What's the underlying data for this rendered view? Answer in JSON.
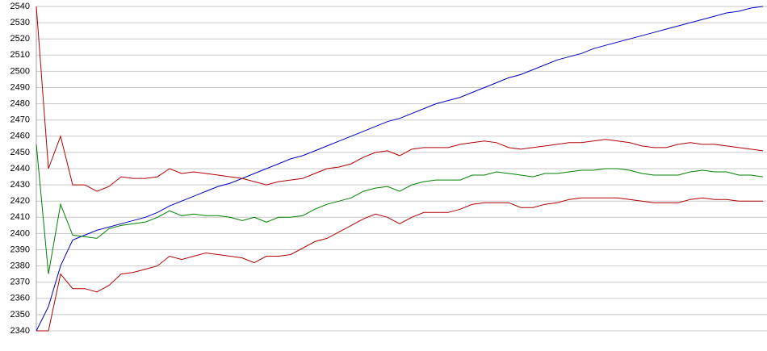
{
  "chart_data": {
    "type": "line",
    "ylim": [
      2340,
      2540
    ],
    "yticks": [
      2340,
      2350,
      2360,
      2370,
      2380,
      2390,
      2400,
      2410,
      2420,
      2430,
      2440,
      2450,
      2460,
      2470,
      2480,
      2490,
      2500,
      2510,
      2520,
      2530,
      2540
    ],
    "grid": true,
    "series": [
      {
        "color": "#0000c0",
        "values": [
          2340,
          2355,
          2380,
          2396,
          2399,
          2402,
          2404,
          2406,
          2408,
          2410,
          2413,
          2417,
          2420,
          2423,
          2426,
          2429,
          2431,
          2434,
          2437,
          2440,
          2443,
          2446,
          2448,
          2451,
          2454,
          2457,
          2460,
          2463,
          2466,
          2469,
          2471,
          2474,
          2477,
          2480,
          2482,
          2484,
          2487,
          2490,
          2493,
          2496,
          2498,
          2501,
          2504,
          2507,
          2509,
          2511,
          2514,
          2516,
          2518,
          2520,
          2522,
          2524,
          2526,
          2528,
          2530,
          2532,
          2534,
          2536,
          2537,
          2539,
          2540
        ]
      },
      {
        "color": "#008000",
        "values": [
          2455,
          2375,
          2418,
          2399,
          2398,
          2397,
          2403,
          2405,
          2406,
          2407,
          2410,
          2414,
          2411,
          2412,
          2411,
          2411,
          2410,
          2408,
          2410,
          2407,
          2410,
          2410,
          2411,
          2415,
          2418,
          2420,
          2422,
          2426,
          2428,
          2429,
          2426,
          2430,
          2432,
          2433,
          2433,
          2433,
          2436,
          2436,
          2438,
          2437,
          2436,
          2435,
          2437,
          2437,
          2438,
          2439,
          2439,
          2440,
          2440,
          2439,
          2437,
          2436,
          2436,
          2436,
          2438,
          2439,
          2438,
          2438,
          2436,
          2436,
          2435
        ]
      },
      {
        "color": "#b00000",
        "values": [
          2540,
          2440,
          2460,
          2430,
          2430,
          2426,
          2429,
          2435,
          2434,
          2434,
          2435,
          2440,
          2437,
          2438,
          2437,
          2436,
          2435,
          2434,
          2432,
          2430,
          2432,
          2433,
          2434,
          2437,
          2440,
          2441,
          2443,
          2447,
          2450,
          2451,
          2448,
          2452,
          2453,
          2453,
          2453,
          2455,
          2456,
          2457,
          2456,
          2453,
          2452,
          2453,
          2454,
          2455,
          2456,
          2456,
          2457,
          2458,
          2457,
          2456,
          2454,
          2453,
          2453,
          2455,
          2456,
          2455,
          2455,
          2454,
          2453,
          2452,
          2451
        ]
      },
      {
        "color": "#b00000",
        "values": [
          2340,
          2340,
          2375,
          2366,
          2366,
          2364,
          2368,
          2375,
          2376,
          2378,
          2380,
          2386,
          2384,
          2386,
          2388,
          2387,
          2386,
          2385,
          2382,
          2386,
          2386,
          2387,
          2391,
          2395,
          2397,
          2401,
          2405,
          2409,
          2412,
          2410,
          2406,
          2410,
          2413,
          2413,
          2413,
          2415,
          2418,
          2419,
          2419,
          2419,
          2416,
          2416,
          2418,
          2419,
          2421,
          2422,
          2422,
          2422,
          2422,
          2421,
          2420,
          2419,
          2419,
          2419,
          2421,
          2422,
          2421,
          2421,
          2420,
          2420,
          2420
        ]
      }
    ]
  }
}
